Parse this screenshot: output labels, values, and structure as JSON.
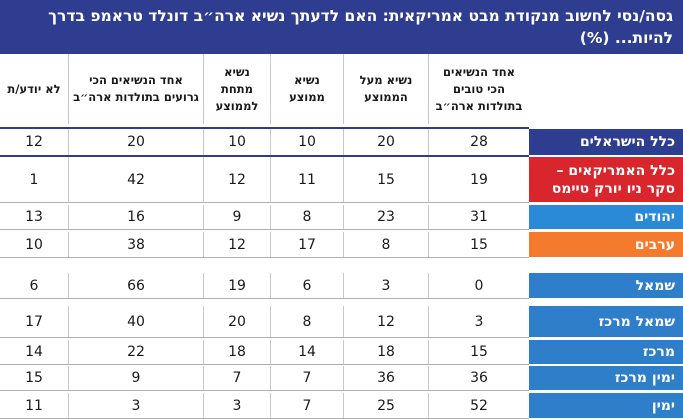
{
  "title": "גסה/נסי לחשוב מנקודת מבט אמריקאית: האם לדעתך נשיא ארה״ב דונלד טראמפ בדרך להיות... (%)",
  "chart_data": {
    "type": "table",
    "columns": [
      "אחד הנשיאים הכי טובים בתולדות ארה״ב",
      "נשיא מעל הממוצע",
      "נשיא ממוצע",
      "נשיא מתחת לממוצע",
      "אחד הנשיאים הכי גרועים בתולדות ארה״ב",
      "לא יודע/ת"
    ],
    "rows": [
      {
        "label": "כלל הישראלים",
        "values": [
          28,
          20,
          10,
          10,
          20,
          12
        ],
        "color": "#2e3d8f"
      },
      {
        "label": "כלל האמריקאים – סקר ניו יורק טיימס",
        "values": [
          19,
          15,
          11,
          12,
          42,
          1
        ],
        "color": "#d9262c"
      },
      {
        "label": "יהודים",
        "values": [
          31,
          23,
          8,
          9,
          16,
          13
        ],
        "color": "#2a8ad8"
      },
      {
        "label": "ערבים",
        "values": [
          15,
          8,
          17,
          12,
          38,
          10
        ],
        "color": "#f47a2e"
      },
      {
        "label": "שמאל",
        "values": [
          0,
          3,
          6,
          19,
          66,
          6
        ],
        "color": "#2e7ec9"
      },
      {
        "label": "שמאל מרכז",
        "values": [
          3,
          12,
          8,
          20,
          40,
          17
        ],
        "color": "#2e7ec9"
      },
      {
        "label": "מרכז",
        "values": [
          15,
          18,
          14,
          18,
          22,
          14
        ],
        "color": "#2e7ec9"
      },
      {
        "label": "ימין מרכז",
        "values": [
          36,
          36,
          7,
          7,
          9,
          15
        ],
        "color": "#2e7ec9"
      },
      {
        "label": "ימין",
        "values": [
          52,
          25,
          7,
          3,
          3,
          11
        ],
        "color": "#2e7ec9"
      }
    ]
  }
}
